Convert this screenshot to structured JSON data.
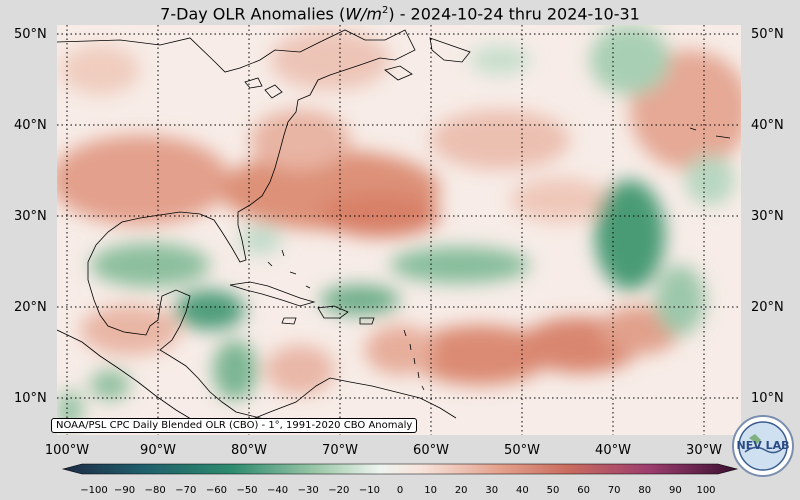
{
  "title": "7-Day OLR Anomalies (W/m²) - 2024-10-24 thru 2024-10-31",
  "title_parts": {
    "prefix": "7-Day OLR Anomalies (",
    "unit": "W/m",
    "sup": "2",
    "suffix": ") - 2024-10-24 thru 2024-10-31"
  },
  "lat_labels": [
    "50°N",
    "40°N",
    "30°N",
    "20°N",
    "10°N"
  ],
  "lon_labels": [
    "100°W",
    "90°W",
    "80°W",
    "70°W",
    "60°W",
    "50°W",
    "40°W",
    "30°W"
  ],
  "attribution": "NOAA/PSL CPC Daily Blended OLR (CBO) - 1°, 1991-2020 CBO Anomaly",
  "colorbar_ticks": [
    "−100",
    "−90",
    "−80",
    "−70",
    "−60",
    "−50",
    "−40",
    "−30",
    "−20",
    "−10",
    "0",
    "10",
    "20",
    "30",
    "40",
    "50",
    "60",
    "70",
    "80",
    "90",
    "100"
  ],
  "colors": {
    "negative": "#2e8b6e",
    "positive": "#d9826a",
    "neutral": "#faf2ee"
  },
  "logo_text": "NEV LAB"
}
